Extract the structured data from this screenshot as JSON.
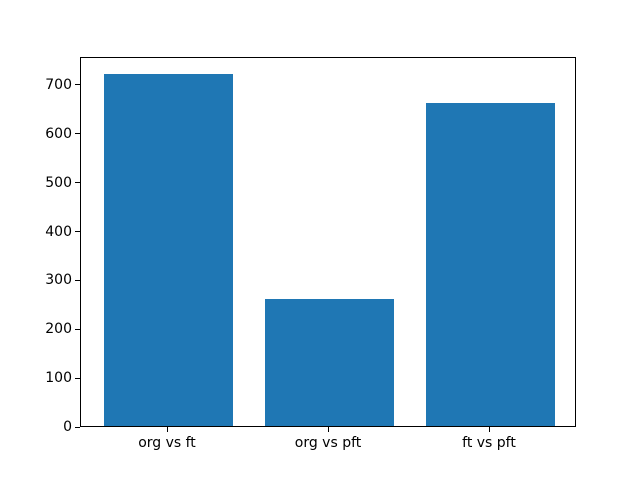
{
  "chart_data": {
    "type": "bar",
    "title": "",
    "xlabel": "",
    "ylabel": "",
    "categories": [
      "org vs ft",
      "org vs pft",
      "ft vs pft"
    ],
    "values": [
      720,
      260,
      660
    ],
    "yticks": [
      0,
      100,
      200,
      300,
      400,
      500,
      600,
      700
    ],
    "ylim": [
      0,
      757
    ],
    "grid": false,
    "legend": null,
    "bar_color": "#1f77b4",
    "axis_color": "#000000",
    "background_color": "#ffffff"
  }
}
